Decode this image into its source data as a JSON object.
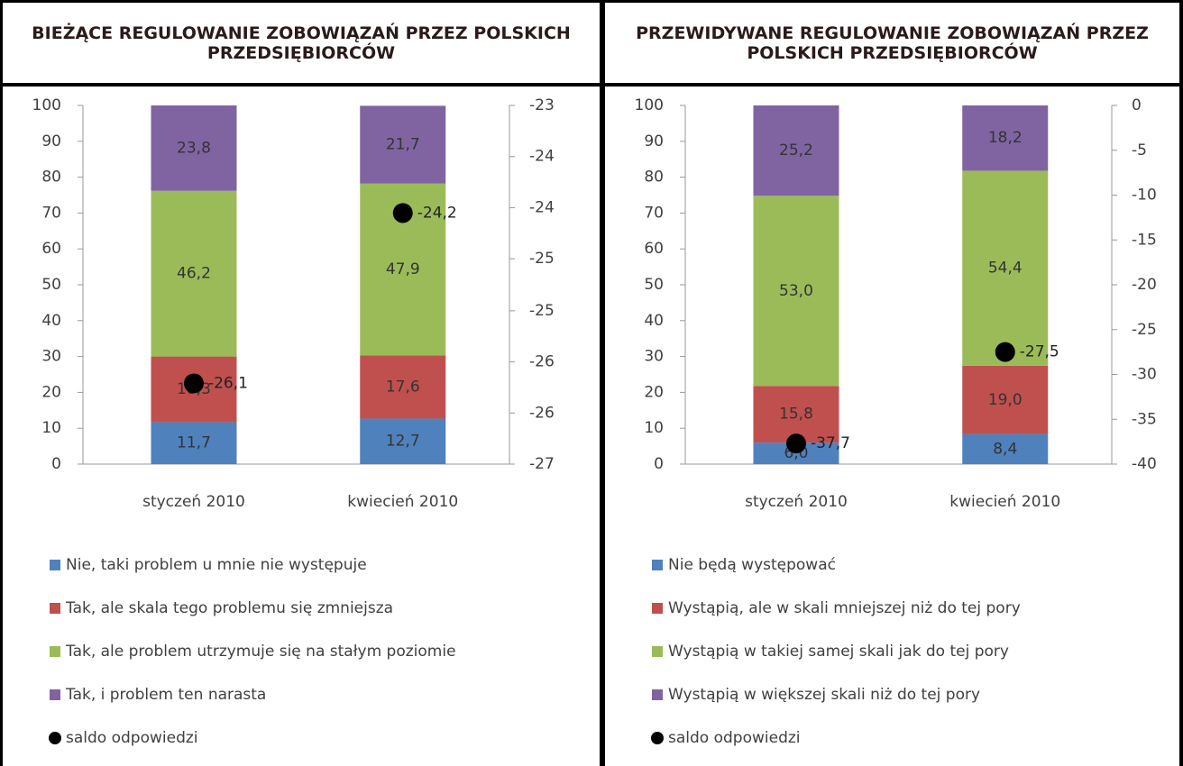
{
  "chart_data": [
    {
      "type": "bar",
      "stacked": true,
      "title": "BIEŻĄCE REGULOWANIE ZOBOWIĄZAŃ PRZEZ POLSKICH PRZEDSIĘBIORCÓW",
      "categories": [
        "styczeń 2010",
        "kwiecień 2010"
      ],
      "series": [
        {
          "name": "Nie, taki problem u mnie nie występuje",
          "color": "#4f81bd",
          "values": [
            11.7,
            12.7
          ],
          "value_labels": [
            "11,7",
            "12,7"
          ]
        },
        {
          "name": "Tak, ale skala tego problemu się zmniejsza",
          "color": "#c0504d",
          "values": [
            18.3,
            17.6
          ],
          "value_labels": [
            "18,3",
            "17,6"
          ]
        },
        {
          "name": "Tak, ale problem utrzymuje się na stałym poziomie",
          "color": "#9bbb59",
          "values": [
            46.2,
            47.9
          ],
          "value_labels": [
            "46,2",
            "47,9"
          ]
        },
        {
          "name": "Tak, i problem ten narasta",
          "color": "#8064a2",
          "values": [
            23.8,
            21.7
          ],
          "value_labels": [
            "23,8",
            "21,7"
          ]
        },
        {
          "name": "saldo odpowiedzi",
          "type": "scatter",
          "axis": "y2",
          "color": "#000000",
          "values": [
            -26.1,
            -24.2
          ],
          "value_labels": [
            "-26,1",
            "-24,2"
          ]
        }
      ],
      "ylim": [
        0,
        100
      ],
      "yticks": [
        0,
        10,
        20,
        30,
        40,
        50,
        60,
        70,
        80,
        90,
        100
      ],
      "y2lim": [
        -27,
        -23
      ],
      "y2ticks": [
        -27,
        {
          "value": -26.43,
          "label": "-26"
        },
        {
          "value": -25.86,
          "label": "-26"
        },
        {
          "value": -25.29,
          "label": "-25"
        },
        {
          "value": -24.71,
          "label": "-25"
        },
        {
          "value": -24.14,
          "label": "-24"
        },
        {
          "value": -23.57,
          "label": "-24"
        },
        -23
      ]
    },
    {
      "type": "bar",
      "stacked": true,
      "title": "PRZEWIDYWANE REGULOWANIE ZOBOWIĄZAŃ PRZEZ POLSKICH PRZEDSIĘBIORCÓW",
      "categories": [
        "styczeń 2010",
        "kwiecień 2010"
      ],
      "series": [
        {
          "name": "Nie będą występować",
          "color": "#4f81bd",
          "values": [
            6.0,
            8.4
          ],
          "value_labels": [
            "6,0",
            "8,4"
          ]
        },
        {
          "name": "Wystąpią, ale w skali mniejszej niż do tej pory",
          "color": "#c0504d",
          "values": [
            15.8,
            19.0
          ],
          "value_labels": [
            "15,8",
            "19,0"
          ]
        },
        {
          "name": "Wystąpią w takiej samej skali jak do tej pory",
          "color": "#9bbb59",
          "values": [
            53.0,
            54.4
          ],
          "value_labels": [
            "53,0",
            "54,4"
          ]
        },
        {
          "name": "Wystąpią w większej skali niż do tej pory",
          "color": "#8064a2",
          "values": [
            25.2,
            18.2
          ],
          "value_labels": [
            "25,2",
            "18,2"
          ]
        },
        {
          "name": "saldo odpowiedzi",
          "type": "scatter",
          "axis": "y2",
          "color": "#000000",
          "values": [
            -37.7,
            -27.5
          ],
          "value_labels": [
            "-37,7",
            "-27,5"
          ]
        }
      ],
      "ylim": [
        0,
        100
      ],
      "yticks": [
        0,
        10,
        20,
        30,
        40,
        50,
        60,
        70,
        80,
        90,
        100
      ],
      "y2lim": [
        -40,
        0
      ],
      "y2ticks": [
        -40,
        -35,
        -30,
        -25,
        -20,
        -15,
        -10,
        -5,
        0
      ]
    }
  ]
}
